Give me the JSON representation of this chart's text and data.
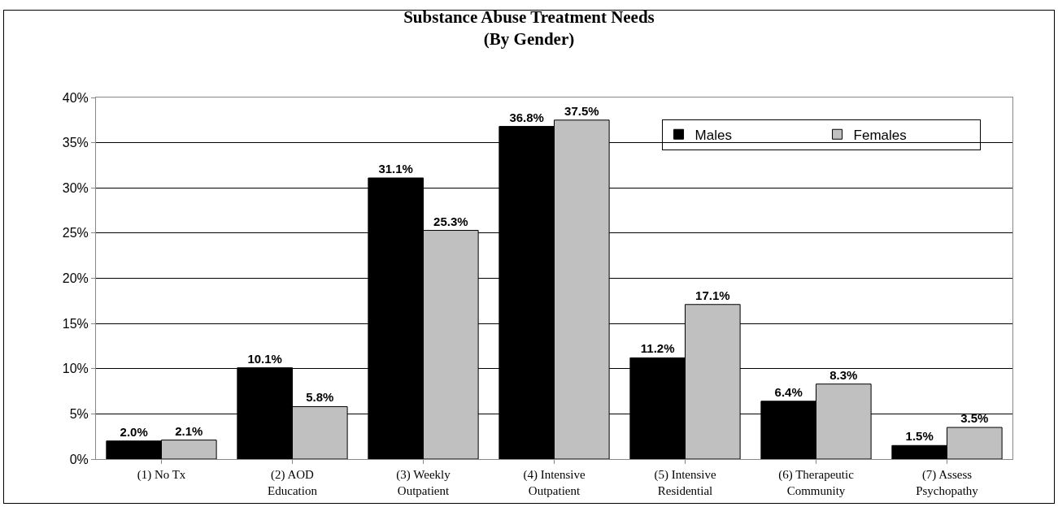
{
  "chart_data": {
    "type": "bar",
    "title": "Substance Abuse Treatment Needs\n(By Gender)",
    "categories": [
      "(1) No Tx",
      "(2) AOD\nEducation",
      "(3) Weekly\nOutpatient",
      "(4) Intensive\nOutpatient",
      "(5) Intensive\nResidential",
      "(6) Therapeutic\nCommunity",
      "(7) Assess\nPsychopathy"
    ],
    "series": [
      {
        "name": "Males",
        "color": "#000000",
        "values": [
          2.0,
          10.1,
          31.1,
          36.8,
          11.2,
          6.4,
          1.5
        ],
        "value_labels": [
          "2.0%",
          "10.1%",
          "31.1%",
          "36.8%",
          "11.2%",
          "6.4%",
          "1.5%"
        ]
      },
      {
        "name": "Females",
        "color": "#c0c0c0",
        "values": [
          2.1,
          5.8,
          25.3,
          37.5,
          17.1,
          8.3,
          3.5
        ],
        "value_labels": [
          "2.1%",
          "5.8%",
          "25.3%",
          "37.5%",
          "17.1%",
          "8.3%",
          "3.5%"
        ]
      }
    ],
    "ylim": [
      0,
      40
    ],
    "yticks": [
      {
        "value": 0,
        "label": "0%"
      },
      {
        "value": 5,
        "label": "5%"
      },
      {
        "value": 10,
        "label": "10%"
      },
      {
        "value": 15,
        "label": "15%"
      },
      {
        "value": 20,
        "label": "20%"
      },
      {
        "value": 25,
        "label": "25%"
      },
      {
        "value": 30,
        "label": "30%"
      },
      {
        "value": 35,
        "label": "35%"
      },
      {
        "value": 40,
        "label": "40%"
      }
    ],
    "grid": "y",
    "legend": "top right"
  }
}
